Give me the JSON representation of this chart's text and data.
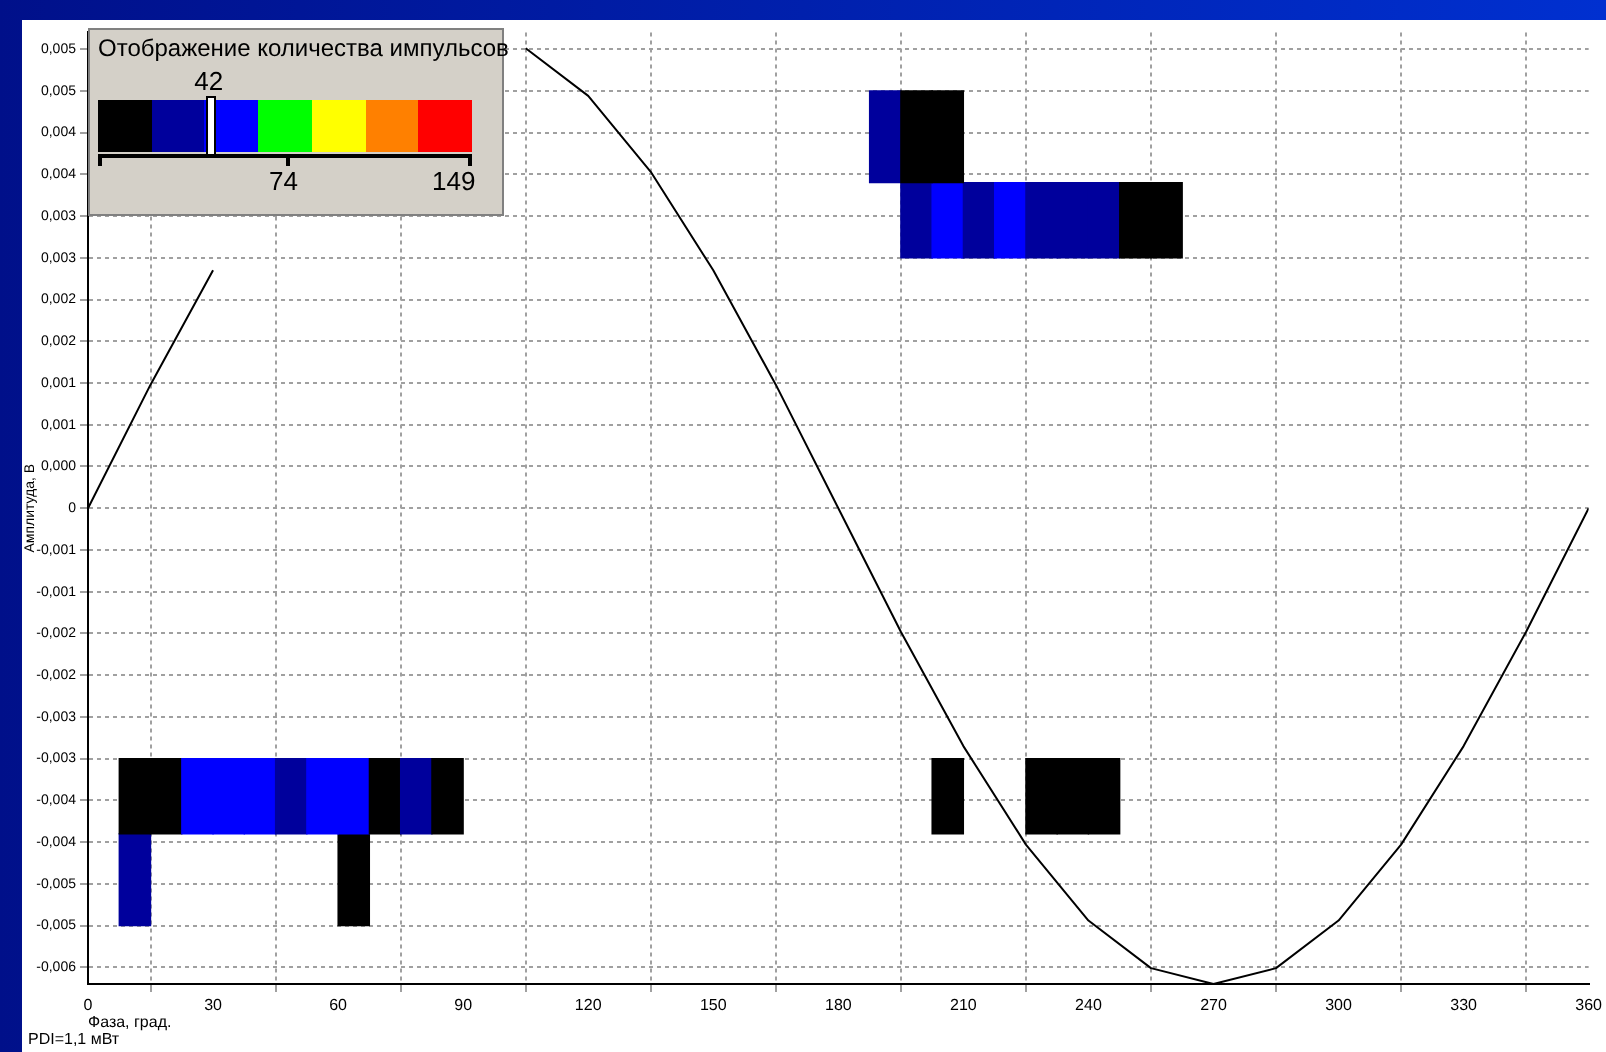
{
  "chart_data": {
    "type": "bar",
    "xlabel": "Фаза, град.",
    "ylabel": "Амплитуда, В",
    "annotations": [
      "Отображение количества импульсов",
      "42",
      "74",
      "149",
      "PDI=1,1 мВт"
    ],
    "xlim": [
      0,
      360
    ],
    "xticks": [
      0,
      30,
      60,
      90,
      120,
      150,
      180,
      210,
      240,
      270,
      300,
      330,
      360
    ],
    "ylim": [
      -0.0057,
      0.0057
    ],
    "yticks": [
      {
        "value": 0.0055,
        "label": "0,005"
      },
      {
        "value": 0.005,
        "label": "0,005"
      },
      {
        "value": 0.0045,
        "label": "0,004"
      },
      {
        "value": 0.004,
        "label": "0,004"
      },
      {
        "value": 0.0035,
        "label": "0,003"
      },
      {
        "value": 0.003,
        "label": "0,003"
      },
      {
        "value": 0.0025,
        "label": "0,002"
      },
      {
        "value": 0.002,
        "label": "0,002"
      },
      {
        "value": 0.0015,
        "label": "0,001"
      },
      {
        "value": 0.001,
        "label": "0,001"
      },
      {
        "value": 0.0005,
        "label": "0,000"
      },
      0,
      {
        "value": -0.0005,
        "label": "-0,001"
      },
      {
        "value": -0.001,
        "label": "-0,001"
      },
      {
        "value": -0.0015,
        "label": "-0,002"
      },
      {
        "value": -0.002,
        "label": "-0,002"
      },
      {
        "value": -0.0025,
        "label": "-0,003"
      },
      {
        "value": -0.003,
        "label": "-0,003"
      },
      {
        "value": -0.0035,
        "label": "-0,004"
      },
      {
        "value": -0.004,
        "label": "-0,004"
      },
      {
        "value": -0.0045,
        "label": "-0,005"
      },
      {
        "value": -0.005,
        "label": "-0,005"
      },
      {
        "value": -0.0055,
        "label": "-0,006"
      }
    ],
    "grid": true,
    "series": [
      {
        "x": [
          11.25,
          18.75,
          26.25,
          33.75,
          41.25,
          48.75,
          56.25,
          63.75,
          71.25,
          78.75,
          86.25,
          206.25,
          228.75,
          236.25,
          243.75
        ],
        "base": [
          -0.0039,
          -0.0039,
          -0.0039,
          -0.0039,
          -0.0039,
          -0.0039,
          -0.0039,
          -0.0039,
          -0.0039,
          -0.0039,
          -0.0039,
          -0.0039,
          -0.0039,
          -0.0039,
          -0.0039
        ],
        "values": [
          0.0009,
          0.0009,
          0.0009,
          0.0009,
          0.0009,
          0.0009,
          0.0009,
          0.0009,
          0.0009,
          0.0009,
          0.0009,
          0.0009,
          0.0009,
          0.0009,
          0.0009
        ],
        "colors": [
          "#000000",
          "#000000",
          "#0000ff",
          "#0000ff",
          "#0000ff",
          "#00009c",
          "#0000ff",
          "#0000ff",
          "#000000",
          "#00009c",
          "#000000",
          "#000000",
          "#000000",
          "#000000",
          "#000000"
        ]
      },
      {
        "x": [
          11.25,
          63.75
        ],
        "base": [
          -0.005,
          -0.005
        ],
        "values": [
          0.0011,
          0.0011
        ],
        "colors": [
          "#00009c",
          "#000000"
        ]
      },
      {
        "x": [
          191.25,
          198.75,
          206.25
        ],
        "base": [
          0.0039,
          0.0039,
          0.0039
        ],
        "values": [
          0.0011,
          0.0011,
          0.0011
        ],
        "colors": [
          "#00009c",
          "#000000",
          "#000000"
        ]
      },
      {
        "x": [
          198.75,
          206.25,
          213.75,
          221.25,
          228.75,
          236.25,
          243.75,
          251.25,
          258.75
        ],
        "base": [
          0.003,
          0.003,
          0.003,
          0.003,
          0.003,
          0.003,
          0.003,
          0.003,
          0.003
        ],
        "values": [
          0.0009,
          0.0009,
          0.0009,
          0.0009,
          0.0009,
          0.0009,
          0.0009,
          0.0009,
          0.0009
        ],
        "colors": [
          "#00009c",
          "#0000ff",
          "#00009c",
          "#0000ff",
          "#00009c",
          "#00009c",
          "#00009c",
          "#000000",
          "#000000"
        ]
      },
      {
        "type": "line",
        "color": "#000000",
        "marker": "none",
        "x": [
          0,
          15,
          30,
          45,
          60,
          75,
          90,
          105,
          120,
          135,
          150,
          165,
          180,
          195,
          210,
          225,
          240,
          255,
          270,
          285,
          300,
          315,
          330,
          345,
          360
        ],
        "values": [
          0,
          0.00148,
          0.00285,
          null,
          null,
          null,
          null,
          0.00551,
          0.00494,
          0.00403,
          0.00285,
          0.00148,
          0,
          -0.00148,
          -0.00285,
          -0.00403,
          -0.00494,
          -0.00551,
          -0.0057,
          -0.00551,
          -0.00494,
          -0.00403,
          -0.00285,
          -0.00148,
          0
        ]
      }
    ]
  }
}
